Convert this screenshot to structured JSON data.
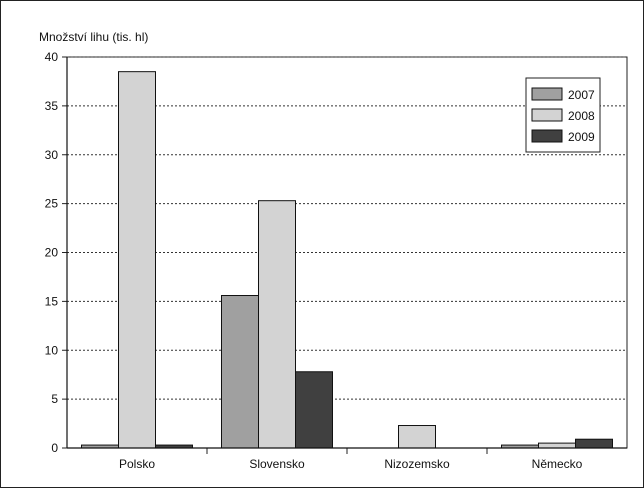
{
  "chart_data": {
    "type": "bar",
    "ylabel": "Množství lihu (tis. hl)",
    "xlabel": "",
    "categories": [
      "Polsko",
      "Slovensko",
      "Nizozemsko",
      "Německo"
    ],
    "series": [
      {
        "name": "2007",
        "values": [
          0.3,
          15.6,
          0,
          0.3
        ],
        "color": "#a0a0a0"
      },
      {
        "name": "2008",
        "values": [
          38.5,
          25.3,
          2.3,
          0.5
        ],
        "color": "#d3d3d3"
      },
      {
        "name": "2009",
        "values": [
          0.3,
          7.8,
          0,
          0.9
        ],
        "color": "#404040"
      }
    ],
    "ylim": [
      0,
      40
    ],
    "yticks": [
      "0",
      "5",
      "10",
      "15",
      "20",
      "25",
      "30",
      "35",
      "40"
    ],
    "grid": "y-dashed",
    "legend_position": "top-right"
  }
}
